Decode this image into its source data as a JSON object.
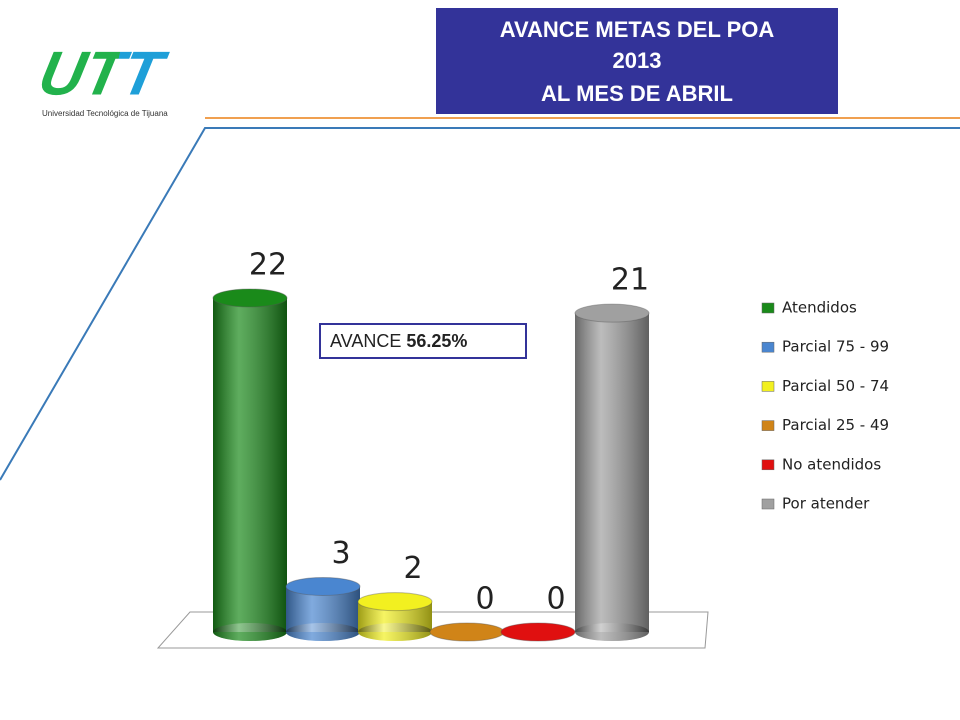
{
  "logo": {
    "mark": "UTT",
    "name": "Universidad Tecnológica de Tijuana"
  },
  "title_lines": [
    "AVANCE METAS DEL POA",
    "2013",
    "AL MES DE ABRIL"
  ],
  "chart_data": {
    "type": "bar",
    "categories": [
      "Atendidos",
      "Parcial 75 - 99",
      "Parcial 50 - 74",
      "Parcial 25 - 49",
      "No atendidos",
      "Por atender"
    ],
    "values": [
      22,
      3,
      2,
      0,
      0,
      21
    ],
    "colors": [
      "#1a8a1a",
      "#4a86d0",
      "#f2f020",
      "#d08418",
      "#e01010",
      "#a0a0a0"
    ],
    "annotation": {
      "label": "AVANCE",
      "value": "56.25%"
    },
    "legend": "right"
  }
}
